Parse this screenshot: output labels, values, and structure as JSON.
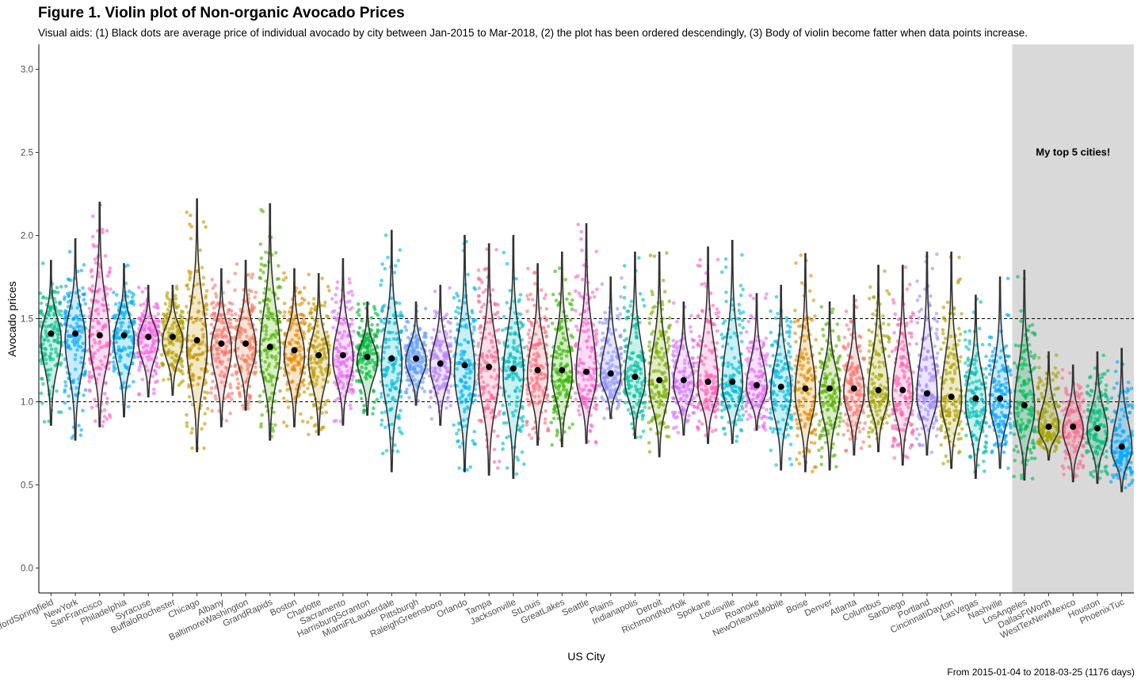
{
  "chart_data": {
    "type": "violin",
    "title": "Figure 1. Violin plot of Non-organic Avocado Prices",
    "subtitle": "Visual aids: (1) Black dots are average price of individual avocado by city between Jan-2015 to Mar-2018, (2) the plot has been ordered descendingly, (3) Body of violin become fatter when data points increase.",
    "caption": "From 2015-01-04 to 2018-03-25 (1176 days)",
    "xlabel": "US City",
    "ylabel": "Avocado prices",
    "ylim": [
      -0.15,
      3.15
    ],
    "yticks": [
      "0.0",
      "0.5",
      "1.0",
      "1.5",
      "2.0",
      "2.5",
      "3.0"
    ],
    "reference_lines": [
      1.0,
      1.5
    ],
    "highlight": {
      "label": "My top 5 cities!",
      "from_category": "LosAngeles",
      "to_category": "PhoenixTucson"
    },
    "grid": false,
    "legend": "none",
    "categories": [
      {
        "name": "HartfordSpringfield",
        "mean": 1.41,
        "min": 0.86,
        "max": 1.85,
        "color": "#00C08B"
      },
      {
        "name": "NewYork",
        "mean": 1.41,
        "min": 0.77,
        "max": 1.98,
        "color": "#00A9FF"
      },
      {
        "name": "SanFrancisco",
        "mean": 1.4,
        "min": 0.85,
        "max": 2.2,
        "color": "#FF61C3"
      },
      {
        "name": "Philadelphia",
        "mean": 1.4,
        "min": 0.91,
        "max": 1.83,
        "color": "#00B0F6"
      },
      {
        "name": "Syracuse",
        "mean": 1.39,
        "min": 1.03,
        "max": 1.7,
        "color": "#F564E3"
      },
      {
        "name": "BuffaloRochester",
        "mean": 1.39,
        "min": 1.04,
        "max": 1.7,
        "color": "#B79F00"
      },
      {
        "name": "Chicago",
        "mean": 1.37,
        "min": 0.7,
        "max": 2.22,
        "color": "#C99800"
      },
      {
        "name": "Albany",
        "mean": 1.35,
        "min": 0.85,
        "max": 1.8,
        "color": "#F8766D"
      },
      {
        "name": "BaltimoreWashington",
        "mean": 1.35,
        "min": 0.95,
        "max": 1.85,
        "color": "#F37B59"
      },
      {
        "name": "GrandRapids",
        "mean": 1.33,
        "min": 0.77,
        "max": 2.19,
        "color": "#53B400"
      },
      {
        "name": "Boston",
        "mean": 1.31,
        "min": 0.85,
        "max": 1.8,
        "color": "#E58700"
      },
      {
        "name": "Charlotte",
        "mean": 1.28,
        "min": 0.8,
        "max": 1.77,
        "color": "#C09B00"
      },
      {
        "name": "Sacramento",
        "mean": 1.28,
        "min": 0.86,
        "max": 1.86,
        "color": "#E76BF3"
      },
      {
        "name": "HarrisburgScranton",
        "mean": 1.27,
        "min": 0.92,
        "max": 1.6,
        "color": "#00BA38"
      },
      {
        "name": "MiamiFtLauderdale",
        "mean": 1.26,
        "min": 0.58,
        "max": 2.03,
        "color": "#00BCD8"
      },
      {
        "name": "Pittsburgh",
        "mean": 1.26,
        "min": 0.98,
        "max": 1.6,
        "color": "#619CFF"
      },
      {
        "name": "RaleighGreensboro",
        "mean": 1.23,
        "min": 0.86,
        "max": 1.7,
        "color": "#B983FF"
      },
      {
        "name": "Orlando",
        "mean": 1.22,
        "min": 0.58,
        "max": 2.0,
        "color": "#00B4EF"
      },
      {
        "name": "Tampa",
        "mean": 1.21,
        "min": 0.56,
        "max": 1.95,
        "color": "#FF6A98"
      },
      {
        "name": "Jacksonville",
        "mean": 1.2,
        "min": 0.54,
        "max": 2.0,
        "color": "#00BFC4"
      },
      {
        "name": "StLouis",
        "mean": 1.19,
        "min": 0.74,
        "max": 1.83,
        "color": "#FC717F"
      },
      {
        "name": "GreatLakes",
        "mean": 1.19,
        "min": 0.73,
        "max": 1.9,
        "color": "#39B600"
      },
      {
        "name": "Seattle",
        "mean": 1.18,
        "min": 0.75,
        "max": 2.07,
        "color": "#FD61D1"
      },
      {
        "name": "Plains",
        "mean": 1.17,
        "min": 0.9,
        "max": 1.75,
        "color": "#8F91FF"
      },
      {
        "name": "Indianapolis",
        "mean": 1.15,
        "min": 0.78,
        "max": 1.9,
        "color": "#00C19F"
      },
      {
        "name": "Detroit",
        "mean": 1.13,
        "min": 0.67,
        "max": 1.9,
        "color": "#7CAE00"
      },
      {
        "name": "RichmondNorfolk",
        "mean": 1.13,
        "min": 0.8,
        "max": 1.6,
        "color": "#D575FE"
      },
      {
        "name": "Spokane",
        "mean": 1.12,
        "min": 0.75,
        "max": 1.93,
        "color": "#FF62BC"
      },
      {
        "name": "Louisville",
        "mean": 1.12,
        "min": 0.75,
        "max": 1.97,
        "color": "#00BDD0"
      },
      {
        "name": "Roanoke",
        "mean": 1.1,
        "min": 0.83,
        "max": 1.65,
        "color": "#E36EF6"
      },
      {
        "name": "NewOrleansMobile",
        "mean": 1.09,
        "min": 0.59,
        "max": 1.7,
        "color": "#00BAE0"
      },
      {
        "name": "Boise",
        "mean": 1.08,
        "min": 0.58,
        "max": 1.89,
        "color": "#DE8C00"
      },
      {
        "name": "Denver",
        "mean": 1.08,
        "min": 0.59,
        "max": 1.6,
        "color": "#5BB300"
      },
      {
        "name": "Atlanta",
        "mean": 1.08,
        "min": 0.68,
        "max": 1.64,
        "color": "#F8766D"
      },
      {
        "name": "Columbus",
        "mean": 1.07,
        "min": 0.7,
        "max": 1.82,
        "color": "#A3A500"
      },
      {
        "name": "SanDiego",
        "mean": 1.07,
        "min": 0.62,
        "max": 1.82,
        "color": "#FF64B0"
      },
      {
        "name": "Portland",
        "mean": 1.05,
        "min": 0.68,
        "max": 1.9,
        "color": "#A58AFF"
      },
      {
        "name": "CincinnatiDayton",
        "mean": 1.03,
        "min": 0.6,
        "max": 1.9,
        "color": "#AEA200"
      },
      {
        "name": "LasVegas",
        "mean": 1.02,
        "min": 0.54,
        "max": 1.64,
        "color": "#00C0B8"
      },
      {
        "name": "Nashville",
        "mean": 1.02,
        "min": 0.6,
        "max": 1.75,
        "color": "#00A5FF"
      },
      {
        "name": "LosAngeles",
        "mean": 0.98,
        "min": 0.53,
        "max": 1.79,
        "color": "#00BD5C"
      },
      {
        "name": "DallasFtWorth",
        "mean": 0.85,
        "min": 0.65,
        "max": 1.3,
        "color": "#A3A500"
      },
      {
        "name": "WestTexNewMexico",
        "mean": 0.85,
        "min": 0.52,
        "max": 1.22,
        "color": "#FF6C91"
      },
      {
        "name": "Houston",
        "mean": 0.84,
        "min": 0.51,
        "max": 1.3,
        "color": "#00BF7D"
      },
      {
        "name": "PhoenixTucson",
        "mean": 0.73,
        "min": 0.46,
        "max": 1.32,
        "color": "#00A9FF"
      }
    ],
    "xtick_labels": [
      "HartfordSpringfield",
      "NewYork",
      "SanFrancisco",
      "Philadelphia",
      "Syracuse",
      "BuffaloRochester",
      "Chicago",
      "Albany",
      "BaltimoreWashington",
      "GrandRapids",
      "Boston",
      "Charlotte",
      "Sacramento",
      "HarrisburgScranton",
      "MiamiFtLauderdale",
      "Pittsburgh",
      "RaleighGreensboro",
      "Orlando",
      "Tampa",
      "Jacksonville",
      "StLouis",
      "GreatLakes",
      "Seattle",
      "Plains",
      "Indianapolis",
      "Detroit",
      "RichmondNorfolk",
      "Spokane",
      "Louisville",
      "Roanoke",
      "NewOrleansMobile",
      "Boise",
      "Denver",
      "Atlanta",
      "Columbus",
      "SanDiego",
      "Portland",
      "CincinnatiDayton",
      "LasVegas",
      "Nashville",
      "LosAngeles",
      "DallasFtWorth",
      "WestTexNewMexico",
      "Houston",
      "PhoenixTuc"
    ]
  }
}
